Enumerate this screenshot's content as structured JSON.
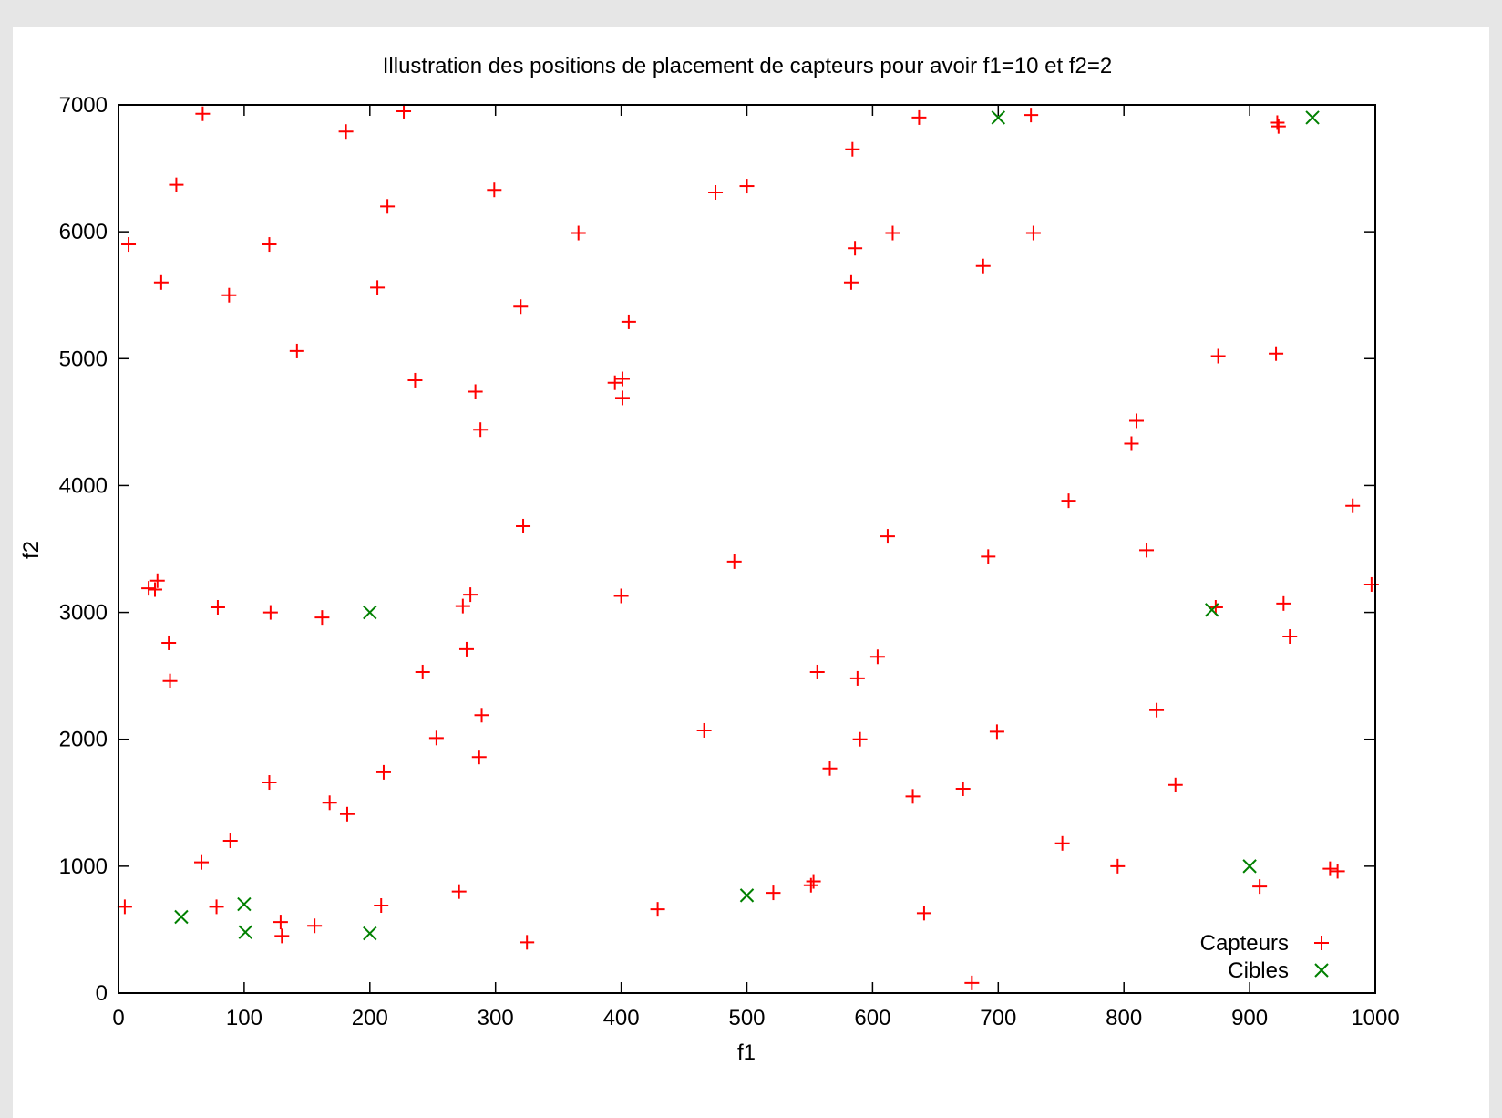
{
  "chart_data": {
    "type": "scatter",
    "title": "Illustration des positions de placement de capteurs pour avoir f1=10 et f2=2",
    "xlabel": "f1",
    "ylabel": "f2",
    "xlim": [
      0,
      1000
    ],
    "ylim": [
      0,
      7000
    ],
    "xticks": [
      0,
      100,
      200,
      300,
      400,
      500,
      600,
      700,
      800,
      900,
      1000
    ],
    "yticks": [
      0,
      1000,
      2000,
      3000,
      4000,
      5000,
      6000,
      7000
    ],
    "grid": false,
    "legend_position": "bottom-right",
    "series": [
      {
        "name": "Capteurs",
        "marker": "plus",
        "color": "#ff0000",
        "points": [
          [
            5,
            680
          ],
          [
            8,
            5900
          ],
          [
            24,
            3190
          ],
          [
            29,
            3180
          ],
          [
            31,
            3250
          ],
          [
            34,
            5600
          ],
          [
            40,
            2760
          ],
          [
            41,
            2460
          ],
          [
            46,
            6370
          ],
          [
            66,
            1030
          ],
          [
            67,
            6930
          ],
          [
            78,
            680
          ],
          [
            79,
            3040
          ],
          [
            88,
            5500
          ],
          [
            89,
            1200
          ],
          [
            120,
            5900
          ],
          [
            120,
            1660
          ],
          [
            121,
            3000
          ],
          [
            129,
            560
          ],
          [
            130,
            450
          ],
          [
            142,
            5060
          ],
          [
            156,
            530
          ],
          [
            162,
            2960
          ],
          [
            168,
            1500
          ],
          [
            181,
            6790
          ],
          [
            182,
            1410
          ],
          [
            206,
            5560
          ],
          [
            209,
            690
          ],
          [
            211,
            1740
          ],
          [
            214,
            6200
          ],
          [
            227,
            6950
          ],
          [
            236,
            4830
          ],
          [
            242,
            2530
          ],
          [
            253,
            2010
          ],
          [
            271,
            800
          ],
          [
            274,
            3050
          ],
          [
            277,
            2710
          ],
          [
            280,
            3140
          ],
          [
            284,
            4740
          ],
          [
            287,
            1860
          ],
          [
            288,
            4440
          ],
          [
            289,
            2190
          ],
          [
            299,
            6330
          ],
          [
            320,
            5410
          ],
          [
            322,
            3680
          ],
          [
            325,
            400
          ],
          [
            366,
            5990
          ],
          [
            395,
            4810
          ],
          [
            400,
            3130
          ],
          [
            401,
            4840
          ],
          [
            401,
            4690
          ],
          [
            406,
            5290
          ],
          [
            429,
            660
          ],
          [
            466,
            2070
          ],
          [
            475,
            6310
          ],
          [
            490,
            3400
          ],
          [
            500,
            6360
          ],
          [
            521,
            790
          ],
          [
            551,
            850
          ],
          [
            553,
            880
          ],
          [
            556,
            2530
          ],
          [
            566,
            1770
          ],
          [
            583,
            5600
          ],
          [
            584,
            6650
          ],
          [
            586,
            5870
          ],
          [
            588,
            2480
          ],
          [
            590,
            2000
          ],
          [
            604,
            2650
          ],
          [
            612,
            3600
          ],
          [
            616,
            5990
          ],
          [
            632,
            1550
          ],
          [
            637,
            6900
          ],
          [
            641,
            630
          ],
          [
            672,
            1610
          ],
          [
            679,
            80
          ],
          [
            688,
            5730
          ],
          [
            692,
            3440
          ],
          [
            699,
            2060
          ],
          [
            726,
            6920
          ],
          [
            728,
            5990
          ],
          [
            751,
            1180
          ],
          [
            756,
            3880
          ],
          [
            795,
            1000
          ],
          [
            806,
            4330
          ],
          [
            810,
            4510
          ],
          [
            818,
            3490
          ],
          [
            826,
            2230
          ],
          [
            841,
            1640
          ],
          [
            873,
            3040
          ],
          [
            875,
            5020
          ],
          [
            921,
            5040
          ],
          [
            922,
            6860
          ],
          [
            923,
            6830
          ],
          [
            927,
            3070
          ],
          [
            932,
            2810
          ],
          [
            908,
            840
          ],
          [
            964,
            980
          ],
          [
            970,
            960
          ],
          [
            982,
            3840
          ],
          [
            997,
            3220
          ]
        ]
      },
      {
        "name": "Cibles",
        "marker": "cross",
        "color": "#008000",
        "points": [
          [
            50,
            600
          ],
          [
            100,
            700
          ],
          [
            101,
            480
          ],
          [
            200,
            3000
          ],
          [
            200,
            470
          ],
          [
            500,
            770
          ],
          [
            700,
            6900
          ],
          [
            870,
            3020
          ],
          [
            900,
            1000
          ],
          [
            950,
            6900
          ]
        ]
      }
    ]
  }
}
